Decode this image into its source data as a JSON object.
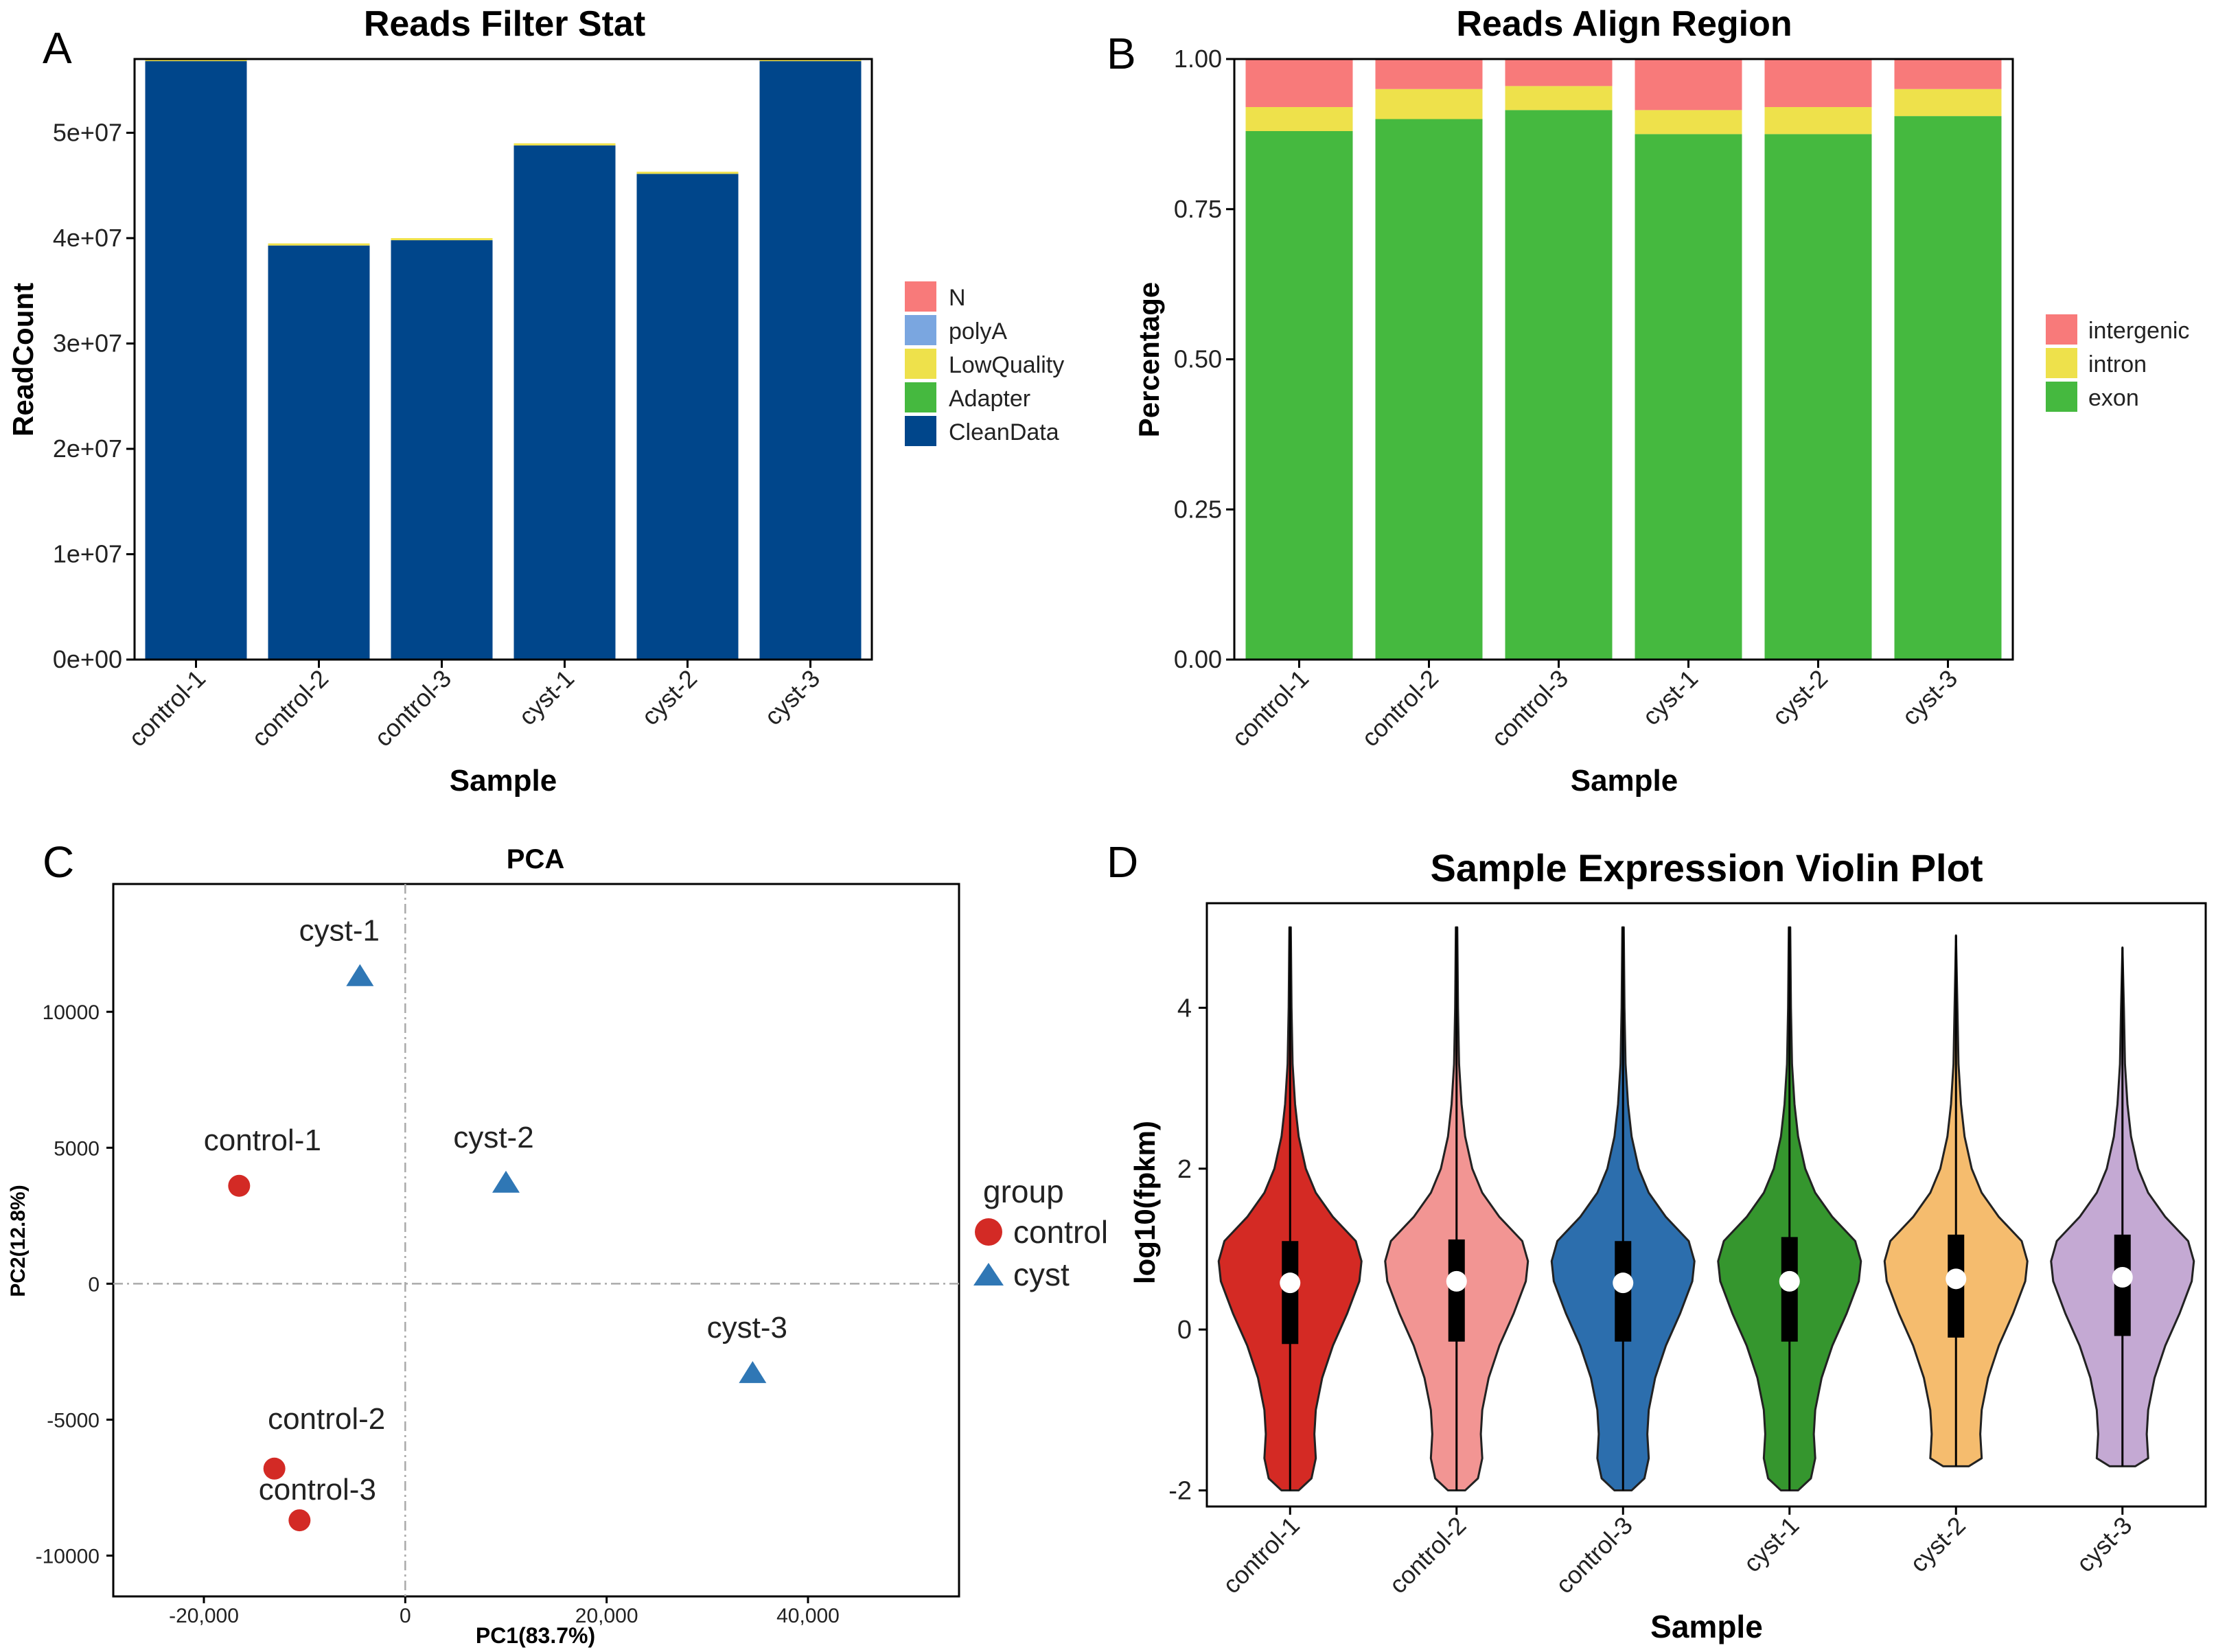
{
  "panels": {
    "a": {
      "letter": "A"
    },
    "b": {
      "letter": "B"
    },
    "c": {
      "letter": "C"
    },
    "d": {
      "letter": "D"
    }
  },
  "colors": {
    "N": "#F87A7A",
    "polyA": "#7AA6E0",
    "LowQuality": "#EEE14B",
    "Adapter": "#45B93F",
    "CleanData": "#00468B",
    "intergenic": "#F87A7A",
    "intron": "#EEE14B",
    "exon": "#45B93F",
    "control_point": "#D32A25",
    "cyst_point": "#2F77B5",
    "violins": [
      "#D42A24",
      "#F29593",
      "#2C6EAD",
      "#35962E",
      "#F5BC6E",
      "#C4A9D3"
    ]
  },
  "chart_data": [
    {
      "id": "reads_filter_stat",
      "type": "bar",
      "stacked": true,
      "title": "Reads Filter Stat",
      "xlabel": "Sample",
      "ylabel": "ReadCount",
      "categories": [
        "control-1",
        "control-2",
        "control-3",
        "cyst-1",
        "cyst-2",
        "cyst-3"
      ],
      "ylim": [
        0,
        57000000
      ],
      "yticks": [
        0,
        10000000,
        20000000,
        30000000,
        40000000,
        50000000
      ],
      "ytick_labels": [
        "0e+00",
        "1e+07",
        "2e+07",
        "3e+07",
        "4e+07",
        "5e+07"
      ],
      "series": [
        {
          "name": "CleanData",
          "values": [
            56800000,
            39300000,
            39800000,
            48800000,
            46100000,
            56800000
          ]
        },
        {
          "name": "Adapter",
          "values": [
            0,
            0,
            0,
            0,
            0,
            0
          ]
        },
        {
          "name": "LowQuality",
          "values": [
            200000,
            200000,
            200000,
            200000,
            200000,
            200000
          ]
        },
        {
          "name": "polyA",
          "values": [
            0,
            0,
            0,
            0,
            0,
            0
          ]
        },
        {
          "name": "N",
          "values": [
            0,
            0,
            0,
            0,
            0,
            0
          ]
        }
      ],
      "legend": [
        "N",
        "polyA",
        "LowQuality",
        "Adapter",
        "CleanData"
      ]
    },
    {
      "id": "reads_align_region",
      "type": "bar",
      "stacked": true,
      "title": "Reads Align Region",
      "xlabel": "Sample",
      "ylabel": "Percentage",
      "categories": [
        "control-1",
        "control-2",
        "control-3",
        "cyst-1",
        "cyst-2",
        "cyst-3"
      ],
      "ylim": [
        0,
        1
      ],
      "yticks": [
        0,
        0.25,
        0.5,
        0.75,
        1.0
      ],
      "ytick_labels": [
        "0.00",
        "0.25",
        "0.50",
        "0.75",
        "1.00"
      ],
      "series": [
        {
          "name": "exon",
          "values": [
            0.88,
            0.9,
            0.915,
            0.875,
            0.875,
            0.905
          ]
        },
        {
          "name": "intron",
          "values": [
            0.04,
            0.05,
            0.04,
            0.04,
            0.045,
            0.045
          ]
        },
        {
          "name": "intergenic",
          "values": [
            0.08,
            0.05,
            0.045,
            0.085,
            0.08,
            0.05
          ]
        }
      ],
      "legend": [
        "intergenic",
        "intron",
        "exon"
      ]
    },
    {
      "id": "pca",
      "type": "scatter",
      "title": "PCA",
      "xlabel": "PC1(83.7%)",
      "ylabel": "PC2(12.8%)",
      "xlim": [
        -29000,
        55000
      ],
      "ylim": [
        -11500,
        14700
      ],
      "xticks": [
        -20000,
        0,
        20000,
        40000
      ],
      "xtick_labels": [
        "-20,000",
        "0",
        "20,000",
        "40,000"
      ],
      "yticks": [
        -10000,
        -5000,
        0,
        5000,
        10000
      ],
      "ytick_labels": [
        "-10000",
        "-5000",
        "0",
        "5000",
        "10000"
      ],
      "legend_title": "group",
      "groups": [
        "control",
        "cyst"
      ],
      "points": [
        {
          "label": "control-1",
          "group": "control",
          "x": -16500,
          "y": 3600
        },
        {
          "label": "control-2",
          "group": "control",
          "x": -13000,
          "y": -6800
        },
        {
          "label": "control-3",
          "group": "control",
          "x": -10500,
          "y": -8700
        },
        {
          "label": "cyst-1",
          "group": "cyst",
          "x": -4500,
          "y": 11300
        },
        {
          "label": "cyst-2",
          "group": "cyst",
          "x": 10000,
          "y": 3700
        },
        {
          "label": "cyst-3",
          "group": "cyst",
          "x": 34500,
          "y": -3300
        }
      ]
    },
    {
      "id": "violin",
      "type": "violin",
      "title": "Sample Expression Violin Plot",
      "xlabel": "Sample",
      "ylabel": "log10(fpkm)",
      "categories": [
        "control-1",
        "control-2",
        "control-3",
        "cyst-1",
        "cyst-2",
        "cyst-3"
      ],
      "ylim": [
        -2.2,
        5.3
      ],
      "yticks": [
        -2,
        0,
        2,
        4
      ],
      "ytick_labels": [
        "-2",
        "0",
        "2",
        "4"
      ],
      "stats": [
        {
          "min": -2.0,
          "max": 5.0,
          "q1": -0.18,
          "median": 0.58,
          "q3": 1.1
        },
        {
          "min": -2.0,
          "max": 5.0,
          "q1": -0.15,
          "median": 0.6,
          "q3": 1.12
        },
        {
          "min": -2.0,
          "max": 5.0,
          "q1": -0.15,
          "median": 0.58,
          "q3": 1.1
        },
        {
          "min": -2.0,
          "max": 5.0,
          "q1": -0.15,
          "median": 0.6,
          "q3": 1.15
        },
        {
          "min": -1.7,
          "max": 4.9,
          "q1": -0.1,
          "median": 0.63,
          "q3": 1.18
        },
        {
          "min": -1.7,
          "max": 4.75,
          "q1": -0.08,
          "median": 0.65,
          "q3": 1.18
        }
      ]
    }
  ]
}
